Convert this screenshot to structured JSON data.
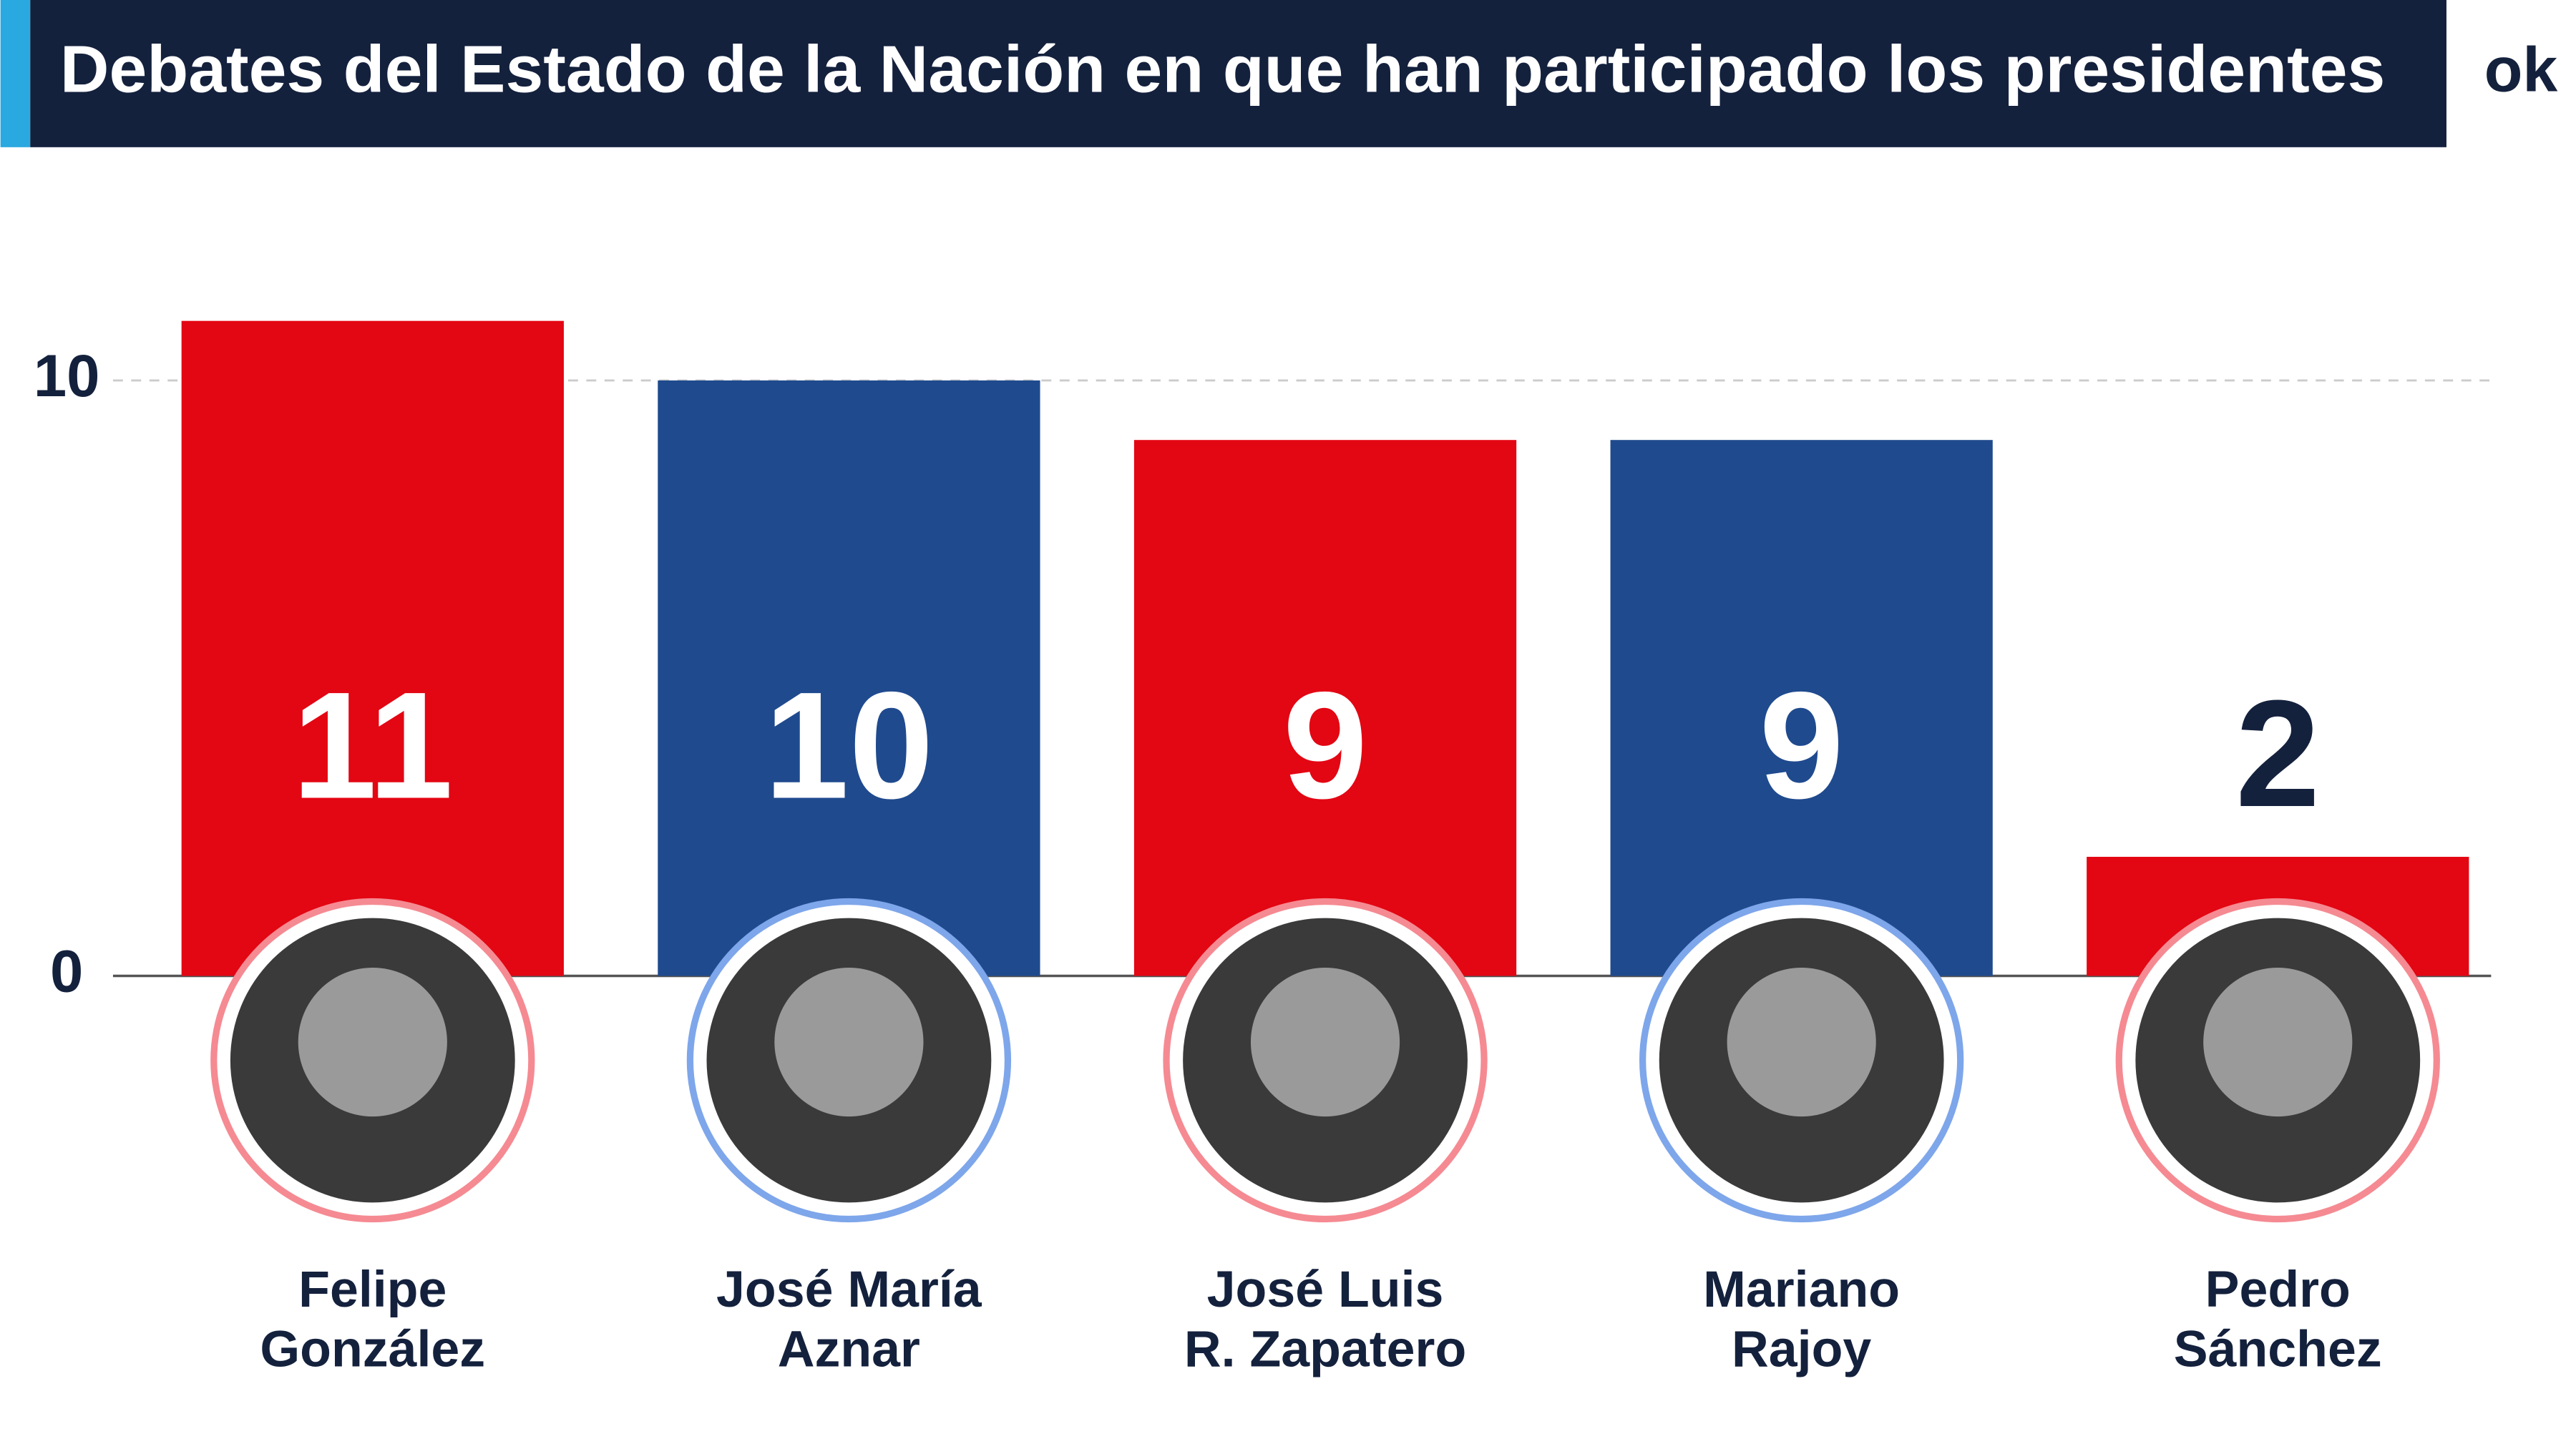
{
  "chart_data": {
    "type": "bar",
    "title": "Debates del Estado de la Nación en que han participado los presidentes",
    "logo": "ok",
    "categories": [
      "Felipe\nGonzález",
      "José María\nAznar",
      "José Luis\nR. Zapatero",
      "Mariano\nRajoy",
      "Pedro\nSánchez"
    ],
    "values": [
      11,
      10,
      9,
      9,
      2
    ],
    "colors": [
      "#e30613",
      "#1f4a8e",
      "#e30613",
      "#1f4a8e",
      "#e30613"
    ],
    "ylim": [
      0,
      12
    ],
    "yticks": [
      0,
      10
    ],
    "grid": true
  }
}
